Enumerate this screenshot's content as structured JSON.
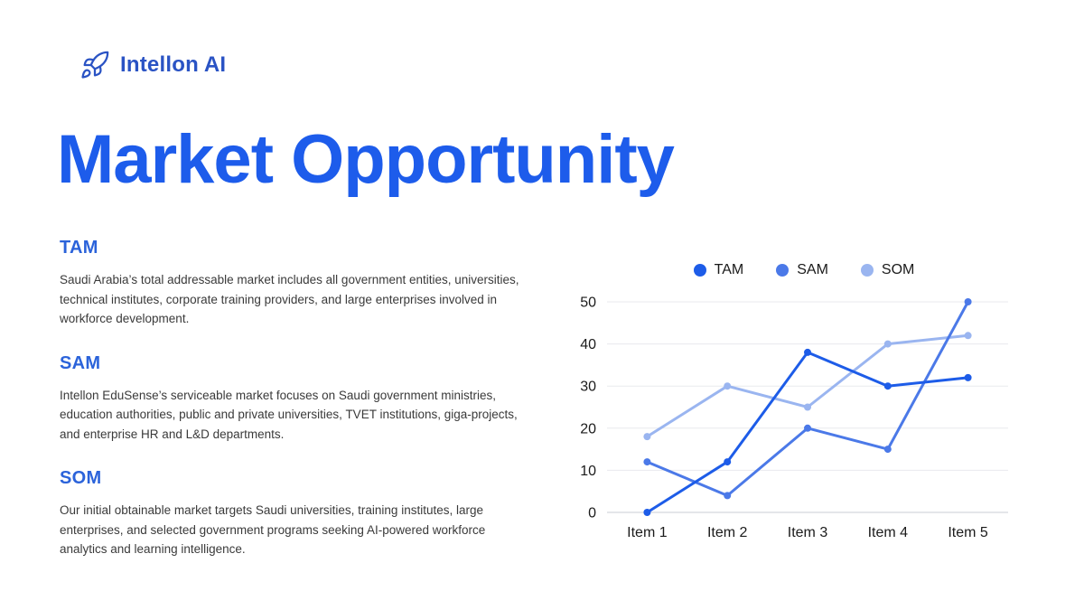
{
  "logo": {
    "icon": "rocket-icon",
    "text": "Intellon AI"
  },
  "title": "Market Opportunity",
  "sections": [
    {
      "heading": "TAM",
      "body": "Saudi Arabia’s total addressable market includes all government entities, universities, technical institutes, corporate training providers, and large enterprises involved in workforce development."
    },
    {
      "heading": "SAM",
      "body": "Intellon EduSense’s serviceable market focuses on Saudi government ministries, education authorities, public and private universities, TVET institutions, giga-projects, and enterprise HR and L&D departments."
    },
    {
      "heading": "SOM",
      "body": "Our initial obtainable market targets Saudi universities, training institutes, large enterprises, and selected government programs seeking AI-powered workforce analytics and learning intelligence."
    }
  ],
  "chart_data": {
    "type": "line",
    "categories": [
      "Item 1",
      "Item 2",
      "Item 3",
      "Item 4",
      "Item 5"
    ],
    "series": [
      {
        "name": "TAM",
        "color": "#1d5ce8",
        "values": [
          0,
          12,
          38,
          30,
          32
        ]
      },
      {
        "name": "SAM",
        "color": "#4b79e8",
        "values": [
          12,
          4,
          20,
          15,
          50
        ]
      },
      {
        "name": "SOM",
        "color": "#9ab5f0",
        "values": [
          18,
          30,
          25,
          40,
          42
        ]
      }
    ],
    "ylim": [
      0,
      50
    ],
    "yticks": [
      0,
      10,
      20,
      30,
      40,
      50
    ],
    "xlabel": "",
    "ylabel": "",
    "grid": "horizontal",
    "legend_position": "top"
  },
  "colors": {
    "title_blue": "#1d5ceb",
    "heading_blue": "#2b63da",
    "logo_blue": "#2a53c4",
    "body_text": "#3a3a3a",
    "gridline": "#e8eaee",
    "baseline": "#c9cdd4",
    "background": "#ffffff"
  }
}
